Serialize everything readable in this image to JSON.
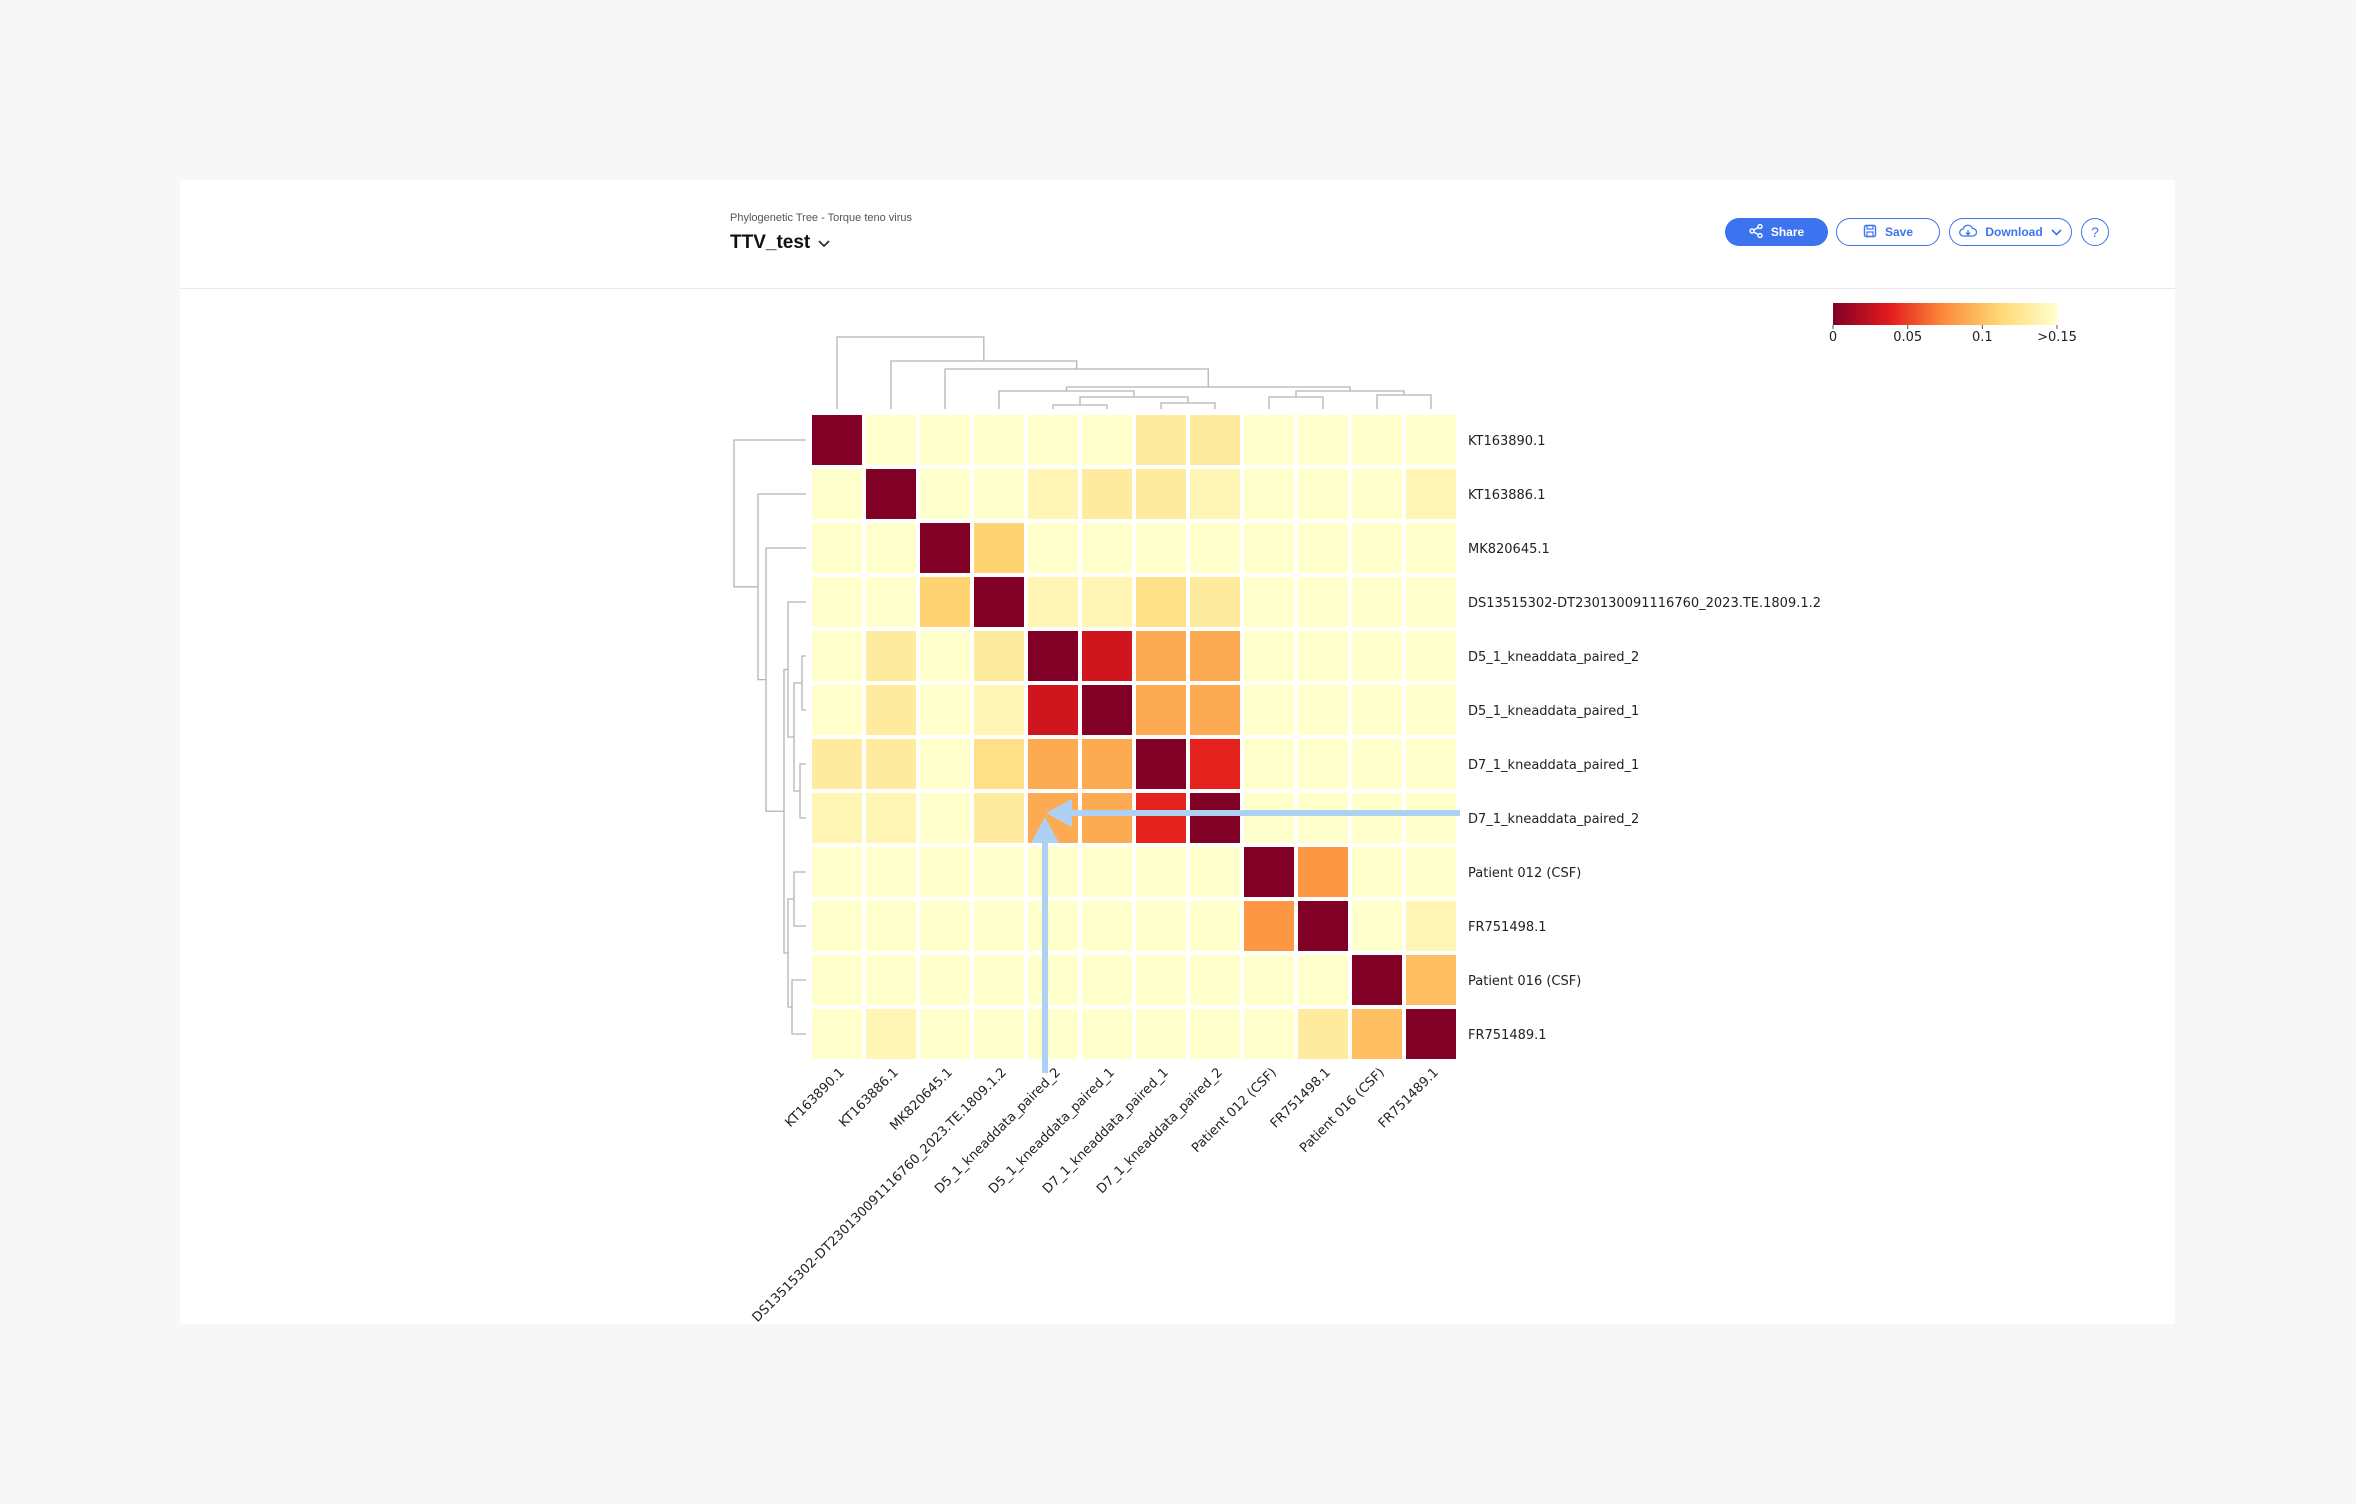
{
  "header": {
    "breadcrumb": "Phylogenetic Tree - Torque teno virus",
    "title": "TTV_test",
    "share_label": "Share",
    "save_label": "Save",
    "download_label": "Download",
    "help_label": "?"
  },
  "icons": {
    "share": "share-icon",
    "save": "floppy-disk-icon",
    "download": "cloud-download-icon",
    "chevron": "chevron-down-icon"
  },
  "colors": {
    "accent": "#3c74f0",
    "arrow": "#aed0f3",
    "scale": [
      "#800026",
      "#e31a1c",
      "#fd8d3c",
      "#fed976",
      "#ffffcc"
    ]
  },
  "chart_data": {
    "type": "heatmap",
    "labels": [
      "KT163890.1",
      "KT163886.1",
      "MK820645.1",
      "DS13515302-DT230130091116760_2023.TE.1809.1.2",
      "D5_1_kneaddata_paired_2",
      "D5_1_kneaddata_paired_1",
      "D7_1_kneaddata_paired_1",
      "D7_1_kneaddata_paired_2",
      "Patient 012 (CSF)",
      "FR751498.1",
      "Patient 016 (CSF)",
      "FR751489.1"
    ],
    "colorbar": {
      "min": 0,
      "max": 0.15,
      "ticks": [
        {
          "value": 0,
          "label": "0"
        },
        {
          "value": 0.05,
          "label": "0.05"
        },
        {
          "value": 0.1,
          "label": "0.1"
        },
        {
          "value": 0.15,
          "label": ">0.15"
        }
      ]
    },
    "matrix": [
      [
        0,
        0.15,
        0.15,
        0.15,
        0.15,
        0.15,
        0.13,
        0.13,
        0.15,
        0.15,
        0.15,
        0.15
      ],
      [
        0.15,
        0,
        0.15,
        0.15,
        0.14,
        0.13,
        0.13,
        0.14,
        0.15,
        0.15,
        0.15,
        0.14
      ],
      [
        0.15,
        0.15,
        0,
        0.11,
        0.15,
        0.15,
        0.15,
        0.15,
        0.15,
        0.15,
        0.15,
        0.15
      ],
      [
        0.15,
        0.15,
        0.11,
        0,
        0.14,
        0.14,
        0.12,
        0.13,
        0.15,
        0.15,
        0.15,
        0.15
      ],
      [
        0.15,
        0.13,
        0.15,
        0.13,
        0,
        0.03,
        0.09,
        0.09,
        0.15,
        0.15,
        0.15,
        0.15
      ],
      [
        0.15,
        0.13,
        0.15,
        0.14,
        0.03,
        0,
        0.09,
        0.09,
        0.15,
        0.15,
        0.15,
        0.15
      ],
      [
        0.13,
        0.13,
        0.15,
        0.12,
        0.09,
        0.09,
        0,
        0.04,
        0.15,
        0.15,
        0.15,
        0.15
      ],
      [
        0.14,
        0.14,
        0.15,
        0.13,
        0.09,
        0.09,
        0.04,
        0,
        0.15,
        0.15,
        0.15,
        0.15
      ],
      [
        0.15,
        0.15,
        0.15,
        0.15,
        0.15,
        0.15,
        0.15,
        0.15,
        0,
        0.08,
        0.15,
        0.15
      ],
      [
        0.15,
        0.15,
        0.15,
        0.15,
        0.15,
        0.15,
        0.15,
        0.15,
        0.08,
        0,
        0.15,
        0.14
      ],
      [
        0.15,
        0.15,
        0.15,
        0.15,
        0.15,
        0.15,
        0.15,
        0.15,
        0.15,
        0.15,
        0,
        0.1
      ],
      [
        0.15,
        0.14,
        0.15,
        0.15,
        0.15,
        0.15,
        0.15,
        0.15,
        0.15,
        0.13,
        0.1,
        0
      ]
    ],
    "annotation": {
      "type": "arrows",
      "row": "D7_1_kneaddata_paired_2",
      "column": "D5_1_kneaddata_paired_2"
    }
  }
}
